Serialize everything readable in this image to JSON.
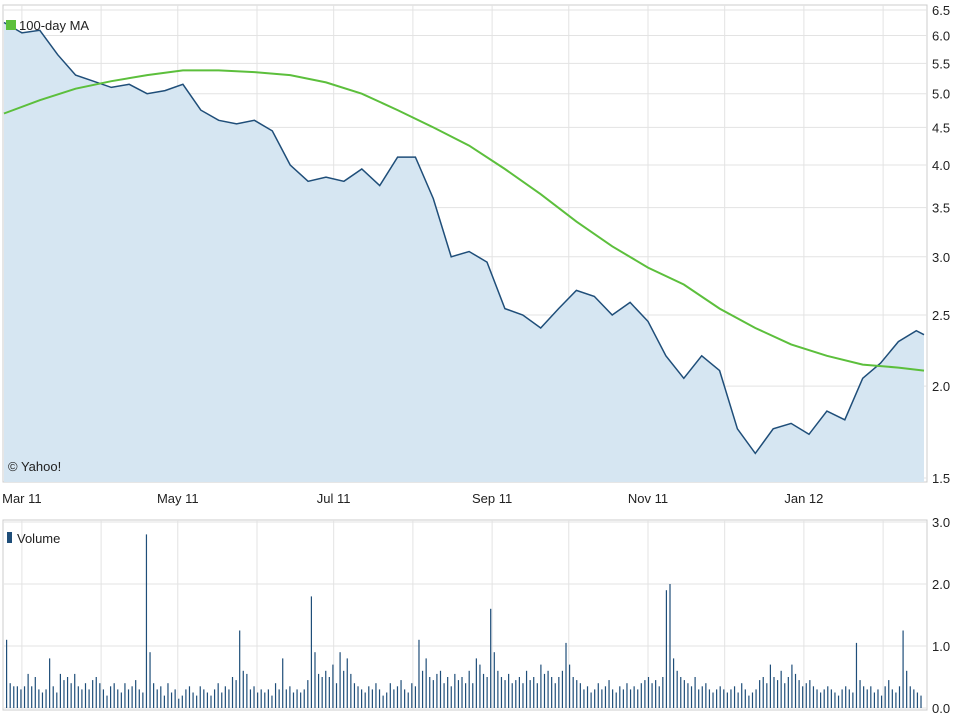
{
  "chart_data": [
    {
      "type": "area",
      "title": "",
      "legend": {
        "label": "100-day MA",
        "placement": "top-left"
      },
      "watermark": "© Yahoo!",
      "xlabel": "",
      "ylabel": "",
      "x_ticks": [
        "Mar 11",
        "May 11",
        "Jul 11",
        "Sep 11",
        "Nov 11",
        "Jan 12"
      ],
      "y_ticks": [
        "1.5",
        "2.0",
        "2.5",
        "3.0",
        "3.5",
        "4.0",
        "4.5",
        "5.0",
        "5.5",
        "6.0",
        "6.5"
      ],
      "y_scale": "log",
      "ylim": [
        1.5,
        6.5
      ],
      "xlim": [
        "2011-02-22",
        "2012-02-17"
      ],
      "grid": true,
      "series": [
        {
          "name": "",
          "color": "#1f4e79",
          "fill": "#d6e6f2",
          "points": [
            [
              "2011-02-22",
              6.25
            ],
            [
              "2011-03-01",
              6.05
            ],
            [
              "2011-03-08",
              6.1
            ],
            [
              "2011-03-15",
              5.65
            ],
            [
              "2011-03-22",
              5.3
            ],
            [
              "2011-03-29",
              5.2
            ],
            [
              "2011-04-05",
              5.1
            ],
            [
              "2011-04-12",
              5.15
            ],
            [
              "2011-04-19",
              5.0
            ],
            [
              "2011-04-26",
              5.05
            ],
            [
              "2011-05-03",
              5.15
            ],
            [
              "2011-05-10",
              4.75
            ],
            [
              "2011-05-17",
              4.6
            ],
            [
              "2011-05-24",
              4.55
            ],
            [
              "2011-05-31",
              4.6
            ],
            [
              "2011-06-07",
              4.45
            ],
            [
              "2011-06-14",
              4.0
            ],
            [
              "2011-06-21",
              3.8
            ],
            [
              "2011-06-28",
              3.85
            ],
            [
              "2011-07-05",
              3.8
            ],
            [
              "2011-07-12",
              3.95
            ],
            [
              "2011-07-19",
              3.75
            ],
            [
              "2011-07-26",
              4.1
            ],
            [
              "2011-08-02",
              4.1
            ],
            [
              "2011-08-09",
              3.6
            ],
            [
              "2011-08-16",
              3.0
            ],
            [
              "2011-08-23",
              3.05
            ],
            [
              "2011-08-30",
              2.95
            ],
            [
              "2011-09-06",
              2.55
            ],
            [
              "2011-09-13",
              2.5
            ],
            [
              "2011-09-20",
              2.4
            ],
            [
              "2011-09-27",
              2.55
            ],
            [
              "2011-10-04",
              2.7
            ],
            [
              "2011-10-11",
              2.65
            ],
            [
              "2011-10-18",
              2.5
            ],
            [
              "2011-10-25",
              2.6
            ],
            [
              "2011-11-01",
              2.45
            ],
            [
              "2011-11-08",
              2.2
            ],
            [
              "2011-11-15",
              2.05
            ],
            [
              "2011-11-22",
              2.2
            ],
            [
              "2011-11-29",
              2.1
            ],
            [
              "2011-12-06",
              1.75
            ],
            [
              "2011-12-13",
              1.62
            ],
            [
              "2011-12-20",
              1.75
            ],
            [
              "2011-12-27",
              1.78
            ],
            [
              "2012-01-03",
              1.72
            ],
            [
              "2012-01-10",
              1.85
            ],
            [
              "2012-01-17",
              1.8
            ],
            [
              "2012-01-24",
              2.05
            ],
            [
              "2012-01-31",
              2.15
            ],
            [
              "2012-02-07",
              2.3
            ],
            [
              "2012-02-14",
              2.38
            ],
            [
              "2012-02-17",
              2.35
            ]
          ]
        },
        {
          "name": "100-day MA",
          "color": "#5cbf3c",
          "fill": "none",
          "points": [
            [
              "2011-02-22",
              4.7
            ],
            [
              "2011-03-08",
              4.9
            ],
            [
              "2011-03-22",
              5.08
            ],
            [
              "2011-04-05",
              5.2
            ],
            [
              "2011-04-19",
              5.3
            ],
            [
              "2011-05-03",
              5.38
            ],
            [
              "2011-05-17",
              5.38
            ],
            [
              "2011-05-31",
              5.35
            ],
            [
              "2011-06-14",
              5.3
            ],
            [
              "2011-06-28",
              5.18
            ],
            [
              "2011-07-12",
              5.0
            ],
            [
              "2011-07-26",
              4.75
            ],
            [
              "2011-08-09",
              4.5
            ],
            [
              "2011-08-23",
              4.25
            ],
            [
              "2011-09-06",
              3.95
            ],
            [
              "2011-09-20",
              3.65
            ],
            [
              "2011-10-04",
              3.35
            ],
            [
              "2011-10-18",
              3.1
            ],
            [
              "2011-11-01",
              2.9
            ],
            [
              "2011-11-15",
              2.75
            ],
            [
              "2011-11-29",
              2.55
            ],
            [
              "2011-12-13",
              2.4
            ],
            [
              "2011-12-27",
              2.28
            ],
            [
              "2012-01-10",
              2.2
            ],
            [
              "2012-01-24",
              2.14
            ],
            [
              "2012-02-07",
              2.12
            ],
            [
              "2012-02-17",
              2.1
            ]
          ]
        }
      ]
    },
    {
      "type": "bar",
      "title": "",
      "legend": {
        "label": "Volume",
        "placement": "top-left"
      },
      "y_ticks": [
        "0.0",
        "1.0",
        "2.0",
        "3.0"
      ],
      "ylim": [
        0,
        3
      ],
      "grid": true,
      "series": [
        {
          "name": "Volume",
          "color": "#1f4e79",
          "values": [
            1.1,
            0.4,
            0.35,
            0.35,
            0.3,
            0.35,
            0.55,
            0.35,
            0.5,
            0.3,
            0.25,
            0.3,
            0.8,
            0.35,
            0.25,
            0.55,
            0.45,
            0.5,
            0.4,
            0.55,
            0.35,
            0.3,
            0.4,
            0.3,
            0.45,
            0.5,
            0.4,
            0.3,
            0.2,
            0.35,
            0.4,
            0.3,
            0.25,
            0.4,
            0.3,
            0.35,
            0.45,
            0.3,
            0.25,
            2.8,
            0.9,
            0.4,
            0.3,
            0.35,
            0.2,
            0.4,
            0.25,
            0.3,
            0.15,
            0.2,
            0.3,
            0.35,
            0.25,
            0.2,
            0.35,
            0.3,
            0.25,
            0.2,
            0.3,
            0.4,
            0.25,
            0.35,
            0.3,
            0.5,
            0.45,
            1.25,
            0.6,
            0.55,
            0.3,
            0.35,
            0.25,
            0.3,
            0.25,
            0.3,
            0.2,
            0.4,
            0.3,
            0.8,
            0.3,
            0.35,
            0.25,
            0.3,
            0.25,
            0.3,
            0.45,
            1.8,
            0.9,
            0.55,
            0.5,
            0.6,
            0.5,
            0.7,
            0.4,
            0.9,
            0.6,
            0.8,
            0.55,
            0.4,
            0.35,
            0.3,
            0.25,
            0.35,
            0.3,
            0.4,
            0.3,
            0.2,
            0.25,
            0.4,
            0.3,
            0.35,
            0.45,
            0.3,
            0.25,
            0.4,
            0.35,
            1.1,
            0.6,
            0.8,
            0.5,
            0.45,
            0.55,
            0.6,
            0.4,
            0.5,
            0.35,
            0.55,
            0.45,
            0.5,
            0.4,
            0.6,
            0.4,
            0.8,
            0.7,
            0.55,
            0.5,
            1.6,
            0.9,
            0.6,
            0.5,
            0.45,
            0.55,
            0.4,
            0.45,
            0.5,
            0.4,
            0.6,
            0.45,
            0.5,
            0.4,
            0.7,
            0.55,
            0.6,
            0.5,
            0.4,
            0.5,
            0.6,
            1.05,
            0.7,
            0.5,
            0.45,
            0.4,
            0.3,
            0.35,
            0.25,
            0.3,
            0.4,
            0.3,
            0.35,
            0.45,
            0.3,
            0.25,
            0.35,
            0.3,
            0.4,
            0.3,
            0.35,
            0.3,
            0.4,
            0.45,
            0.5,
            0.4,
            0.45,
            0.35,
            0.5,
            1.9,
            2.0,
            0.8,
            0.6,
            0.5,
            0.45,
            0.4,
            0.35,
            0.5,
            0.3,
            0.35,
            0.4,
            0.3,
            0.25,
            0.3,
            0.35,
            0.3,
            0.25,
            0.3,
            0.35,
            0.25,
            0.4,
            0.3,
            0.2,
            0.25,
            0.3,
            0.45,
            0.5,
            0.4,
            0.7,
            0.5,
            0.45,
            0.6,
            0.4,
            0.5,
            0.7,
            0.55,
            0.45,
            0.35,
            0.4,
            0.45,
            0.35,
            0.3,
            0.25,
            0.3,
            0.35,
            0.3,
            0.25,
            0.2,
            0.3,
            0.35,
            0.3,
            0.25,
            1.05,
            0.45,
            0.35,
            0.3,
            0.35,
            0.25,
            0.3,
            0.2,
            0.35,
            0.45,
            0.3,
            0.25,
            0.35,
            1.25,
            0.6,
            0.35,
            0.3,
            0.25,
            0.2
          ]
        }
      ]
    }
  ]
}
